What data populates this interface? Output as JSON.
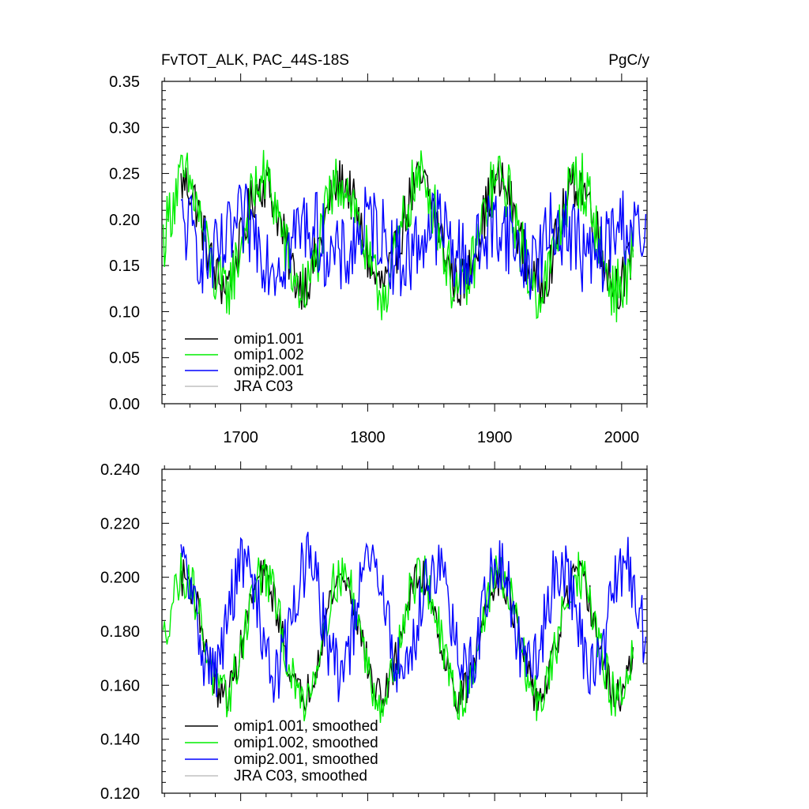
{
  "chart_data": [
    {
      "type": "line",
      "title": "FvTOT_ALK, PAC_44S-18S",
      "units": "PgC/y",
      "xlim": [
        1638,
        2020
      ],
      "ylim": [
        0.0,
        0.35
      ],
      "x_ticks": [
        1700,
        1800,
        1900,
        2000
      ],
      "x_tick_labels": [
        "1700",
        "1800",
        "1900",
        "2000"
      ],
      "y_ticks": [
        0.0,
        0.05,
        0.1,
        0.15,
        0.2,
        0.25,
        0.3,
        0.35
      ],
      "y_tick_labels": [
        "0.00",
        "0.05",
        "0.10",
        "0.15",
        "0.20",
        "0.25",
        "0.30",
        "0.35"
      ],
      "legend": [
        "omip1.001",
        "omip1.002",
        "omip2.001",
        "JRA C03"
      ],
      "legend_position": "bottom-left",
      "series": [
        {
          "name": "omip1.001",
          "color": "#000000",
          "start": 1653,
          "end": 2009,
          "mean": 0.185,
          "amplitude": 0.055,
          "period": 62,
          "noise": 0.028
        },
        {
          "name": "omip1.002",
          "color": "#00ee00",
          "start": 1639,
          "end": 2009,
          "mean": 0.183,
          "amplitude": 0.06,
          "period": 62,
          "noise": 0.035
        },
        {
          "name": "omip2.001",
          "color": "#0000ff",
          "start": 1653,
          "end": 2019,
          "mean": 0.175,
          "amplitude": 0.02,
          "period": 50,
          "noise": 0.045
        },
        {
          "name": "JRA C03",
          "color": "#c0c0c0",
          "start": 1958,
          "end": 2018,
          "mean": 0.18,
          "amplitude": 0.0,
          "period": 62,
          "noise": 0.0
        }
      ]
    },
    {
      "type": "line",
      "xlim": [
        1638,
        2020
      ],
      "ylim": [
        0.12,
        0.24
      ],
      "x_ticks": [
        1700,
        1800,
        1900,
        2000
      ],
      "y_ticks": [
        0.12,
        0.14,
        0.16,
        0.18,
        0.2,
        0.22,
        0.24
      ],
      "y_tick_labels": [
        "0.120",
        "0.140",
        "0.160",
        "0.180",
        "0.200",
        "0.220",
        "0.240"
      ],
      "legend": [
        "omip1.001, smoothed",
        "omip1.002, smoothed",
        "omip2.001, smoothed",
        "JRA C03, smoothed"
      ],
      "legend_position": "bottom-left",
      "series": [
        {
          "name": "omip1.001, smoothed",
          "color": "#000000",
          "start": 1653,
          "end": 2009,
          "mean": 0.178,
          "amplitude": 0.022,
          "period": 62,
          "noise": 0.007
        },
        {
          "name": "omip1.002, smoothed",
          "color": "#00ee00",
          "start": 1639,
          "end": 2009,
          "mean": 0.178,
          "amplitude": 0.023,
          "period": 62,
          "noise": 0.009
        },
        {
          "name": "omip2.001, smoothed",
          "color": "#0000ff",
          "start": 1653,
          "end": 2019,
          "mean": 0.185,
          "amplitude": 0.02,
          "period": 50,
          "noise": 0.012
        },
        {
          "name": "JRA C03, smoothed",
          "color": "#c0c0c0",
          "start": 1958,
          "end": 2018,
          "mean": 0.18,
          "amplitude": 0.0,
          "period": 62,
          "noise": 0.0
        }
      ]
    }
  ]
}
